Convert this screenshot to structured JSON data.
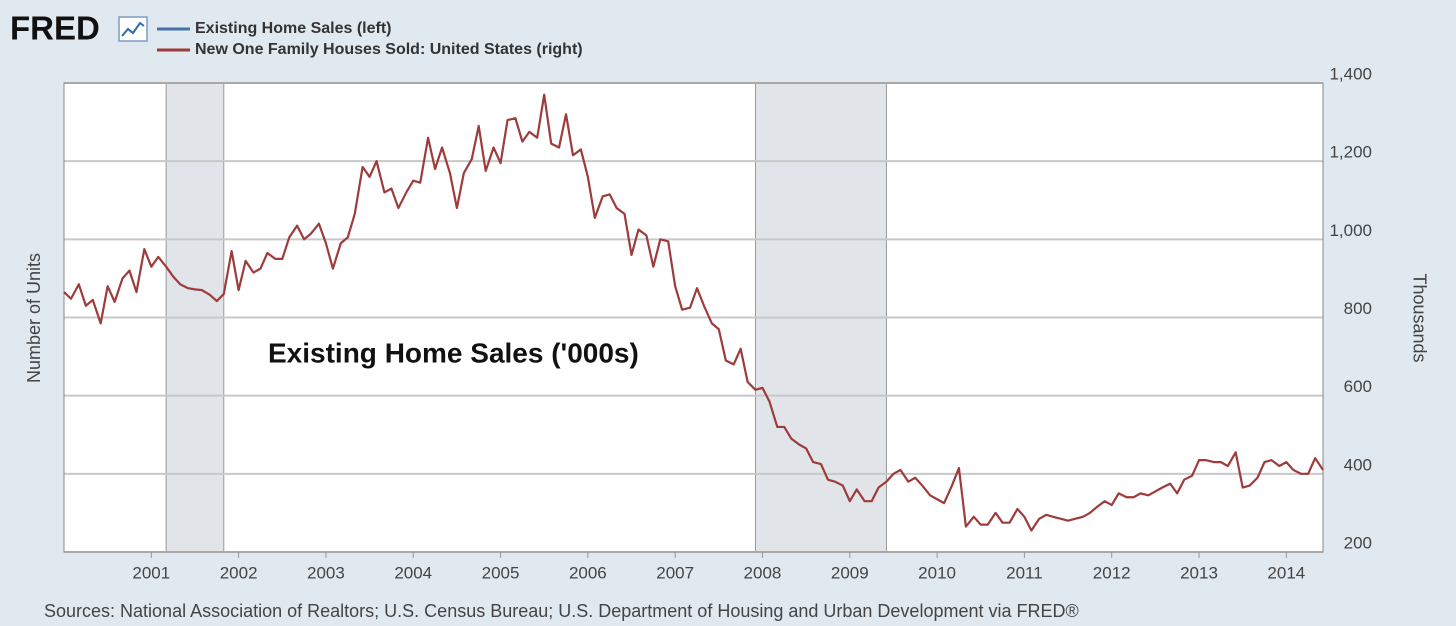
{
  "chart_data": {
    "type": "line",
    "logo": "FRED",
    "annotation": "Existing Home Sales ('000s)",
    "ylabel": "Number of Units",
    "y2label": "Thousands",
    "source": "Sources: National Association of Realtors; U.S. Census Bureau; U.S. Department of Housing and Urban Development via FRED®",
    "xlim": [
      2000,
      2014.42
    ],
    "xticks": [
      2001,
      2002,
      2003,
      2004,
      2005,
      2006,
      2007,
      2008,
      2009,
      2010,
      2011,
      2012,
      2013,
      2014
    ],
    "y2lim": [
      200,
      1400
    ],
    "y2ticks": [
      200,
      400,
      600,
      800,
      {
        "value": 1000,
        "label": "1,000"
      },
      {
        "value": 1200,
        "label": "1,200"
      },
      {
        "value": 1400,
        "label": "1,400"
      }
    ],
    "grid": true,
    "recessions": [
      [
        2001.17,
        2001.83
      ],
      [
        2007.92,
        2009.42
      ]
    ],
    "x": [
      2000,
      2000.08,
      2000.17,
      2000.25,
      2000.33,
      2000.42,
      2000.5,
      2000.58,
      2000.67,
      2000.75,
      2000.83,
      2000.92,
      2001,
      2001.08,
      2001.17,
      2001.25,
      2001.33,
      2001.42,
      2001.5,
      2001.58,
      2001.67,
      2001.75,
      2001.83,
      2001.92,
      2002,
      2002.08,
      2002.17,
      2002.25,
      2002.33,
      2002.42,
      2002.5,
      2002.58,
      2002.67,
      2002.75,
      2002.83,
      2002.92,
      2003,
      2003.08,
      2003.17,
      2003.25,
      2003.33,
      2003.42,
      2003.5,
      2003.58,
      2003.67,
      2003.75,
      2003.83,
      2003.92,
      2004,
      2004.08,
      2004.17,
      2004.25,
      2004.33,
      2004.42,
      2004.5,
      2004.58,
      2004.67,
      2004.75,
      2004.83,
      2004.92,
      2005,
      2005.08,
      2005.17,
      2005.25,
      2005.33,
      2005.42,
      2005.5,
      2005.58,
      2005.67,
      2005.75,
      2005.83,
      2005.92,
      2006,
      2006.08,
      2006.17,
      2006.25,
      2006.33,
      2006.42,
      2006.5,
      2006.58,
      2006.67,
      2006.75,
      2006.83,
      2006.92,
      2007,
      2007.08,
      2007.17,
      2007.25,
      2007.33,
      2007.42,
      2007.5,
      2007.58,
      2007.67,
      2007.75,
      2007.83,
      2007.92,
      2008,
      2008.08,
      2008.17,
      2008.25,
      2008.33,
      2008.42,
      2008.5,
      2008.58,
      2008.67,
      2008.75,
      2008.83,
      2008.92,
      2009,
      2009.08,
      2009.17,
      2009.25,
      2009.33,
      2009.42,
      2009.5,
      2009.58,
      2009.67,
      2009.75,
      2009.83,
      2009.92,
      2010,
      2010.08,
      2010.17,
      2010.25,
      2010.33,
      2010.42,
      2010.5,
      2010.58,
      2010.67,
      2010.75,
      2010.83,
      2010.92,
      2011,
      2011.08,
      2011.17,
      2011.25,
      2011.33,
      2011.42,
      2011.5,
      2011.58,
      2011.67,
      2011.75,
      2011.83,
      2011.92,
      2012,
      2012.08,
      2012.17,
      2012.25,
      2012.33,
      2012.42,
      2012.5,
      2012.58,
      2012.67,
      2012.75,
      2012.83,
      2012.92,
      2013,
      2013.08,
      2013.17,
      2013.25,
      2013.33,
      2013.42,
      2013.5,
      2013.58,
      2013.67,
      2013.75,
      2013.83,
      2013.92,
      2014,
      2014.08,
      2014.17,
      2014.25,
      2014.33,
      2014.42
    ],
    "series": [
      {
        "name": "Existing Home Sales (left)",
        "color": "#4572a7",
        "axis": "y"
      },
      {
        "name": "New One Family Houses Sold: United States (right)",
        "color": "#9e3b3b",
        "axis": "y2",
        "values": [
          865,
          848,
          885,
          830,
          845,
          785,
          880,
          840,
          900,
          920,
          865,
          975,
          930,
          955,
          930,
          905,
          885,
          875,
          872,
          870,
          858,
          842,
          860,
          970,
          870,
          945,
          915,
          925,
          965,
          950,
          950,
          1005,
          1035,
          1000,
          1015,
          1040,
          990,
          925,
          990,
          1005,
          1065,
          1185,
          1160,
          1200,
          1120,
          1130,
          1080,
          1120,
          1150,
          1145,
          1260,
          1180,
          1235,
          1170,
          1080,
          1170,
          1205,
          1290,
          1175,
          1235,
          1195,
          1305,
          1310,
          1250,
          1275,
          1260,
          1370,
          1245,
          1235,
          1320,
          1215,
          1230,
          1160,
          1055,
          1110,
          1115,
          1080,
          1065,
          960,
          1025,
          1010,
          930,
          1000,
          995,
          880,
          820,
          825,
          875,
          830,
          785,
          770,
          690,
          680,
          720,
          635,
          615,
          620,
          585,
          520,
          520,
          490,
          475,
          465,
          430,
          425,
          385,
          380,
          370,
          330,
          360,
          330,
          330,
          365,
          380,
          400,
          410,
          380,
          390,
          370,
          345,
          335,
          325,
          370,
          415,
          265,
          290,
          270,
          270,
          300,
          275,
          275,
          310,
          290,
          255,
          285,
          295,
          290,
          285,
          280,
          285,
          290,
          300,
          315,
          330,
          320,
          350,
          340,
          340,
          350,
          345,
          355,
          365,
          375,
          350,
          385,
          395,
          435,
          435,
          430,
          430,
          420,
          455,
          365,
          370,
          390,
          430,
          435,
          420,
          430,
          410,
          400,
          400,
          440,
          410
        ]
      }
    ]
  }
}
